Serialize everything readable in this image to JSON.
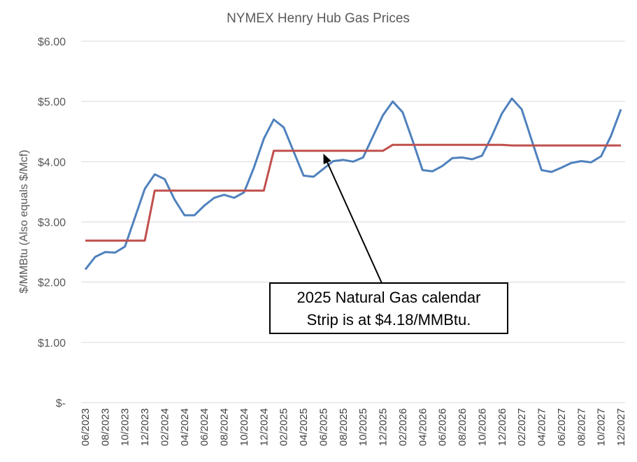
{
  "chart_data": {
    "type": "line",
    "title": "NYMEX Henry Hub Gas Prices",
    "xlabel": "",
    "ylabel": "$/MMBtu (Also equals $/Mcf)",
    "ylim": [
      0,
      6
    ],
    "yticks": [
      {
        "value": 0,
        "label": "$-"
      },
      {
        "value": 1,
        "label": "$1.00"
      },
      {
        "value": 2,
        "label": "$2.00"
      },
      {
        "value": 3,
        "label": "$3.00"
      },
      {
        "value": 4,
        "label": "$4.00"
      },
      {
        "value": 5,
        "label": "$5.00"
      },
      {
        "value": 6,
        "label": "$6.00"
      }
    ],
    "grid": true,
    "legend": "none",
    "xtick_labels": [
      "06/2023",
      "08/2023",
      "10/2023",
      "12/2023",
      "02/2024",
      "04/2024",
      "06/2024",
      "08/2024",
      "10/2024",
      "12/2024",
      "02/2025",
      "04/2025",
      "06/2025",
      "08/2025",
      "10/2025",
      "12/2025",
      "02/2026",
      "04/2026",
      "06/2026",
      "08/2026",
      "10/2026",
      "12/2026",
      "02/2027",
      "04/2027",
      "06/2027",
      "08/2027",
      "10/2027",
      "12/2027"
    ],
    "categories": [
      "06/2023",
      "07/2023",
      "08/2023",
      "09/2023",
      "10/2023",
      "11/2023",
      "12/2023",
      "01/2024",
      "02/2024",
      "03/2024",
      "04/2024",
      "05/2024",
      "06/2024",
      "07/2024",
      "08/2024",
      "09/2024",
      "10/2024",
      "11/2024",
      "12/2024",
      "01/2025",
      "02/2025",
      "03/2025",
      "04/2025",
      "05/2025",
      "06/2025",
      "07/2025",
      "08/2025",
      "09/2025",
      "10/2025",
      "11/2025",
      "12/2025",
      "01/2026",
      "02/2026",
      "03/2026",
      "04/2026",
      "05/2026",
      "06/2026",
      "07/2026",
      "08/2026",
      "09/2026",
      "10/2026",
      "11/2026",
      "12/2026",
      "01/2027",
      "02/2027",
      "03/2027",
      "04/2027",
      "05/2027",
      "06/2027",
      "07/2027",
      "08/2027",
      "09/2027",
      "10/2027",
      "11/2027",
      "12/2027"
    ],
    "series": [
      {
        "color": "#4f81bd",
        "values": [
          2.21,
          2.42,
          2.5,
          2.49,
          2.59,
          3.07,
          3.55,
          3.79,
          3.71,
          3.37,
          3.11,
          3.11,
          3.27,
          3.4,
          3.45,
          3.4,
          3.49,
          3.9,
          4.38,
          4.7,
          4.57,
          4.17,
          3.77,
          3.75,
          3.88,
          4.01,
          4.03,
          4.0,
          4.07,
          4.42,
          4.77,
          5.0,
          4.82,
          4.35,
          3.86,
          3.84,
          3.93,
          4.06,
          4.07,
          4.04,
          4.1,
          4.43,
          4.8,
          5.05,
          4.87,
          4.36,
          3.86,
          3.83,
          3.9,
          3.98,
          4.01,
          3.99,
          4.09,
          4.43,
          4.87
        ]
      },
      {
        "color": "#c0504d",
        "values": [
          2.69,
          2.69,
          2.69,
          2.69,
          2.69,
          2.69,
          2.69,
          3.52,
          3.52,
          3.52,
          3.52,
          3.52,
          3.52,
          3.52,
          3.52,
          3.52,
          3.52,
          3.52,
          3.52,
          4.18,
          4.18,
          4.18,
          4.18,
          4.18,
          4.18,
          4.18,
          4.18,
          4.18,
          4.18,
          4.18,
          4.18,
          4.28,
          4.28,
          4.28,
          4.28,
          4.28,
          4.28,
          4.28,
          4.28,
          4.28,
          4.28,
          4.28,
          4.28,
          4.27,
          4.27,
          4.27,
          4.27,
          4.27,
          4.27,
          4.27,
          4.27,
          4.27,
          4.27,
          4.27,
          4.27
        ]
      }
    ],
    "annotations": [
      {
        "lines": [
          "2025 Natural Gas calendar",
          "Strip is at $4.18/MMBtu."
        ],
        "points_to": {
          "category": "06/2025",
          "value": 4.18
        }
      }
    ]
  }
}
